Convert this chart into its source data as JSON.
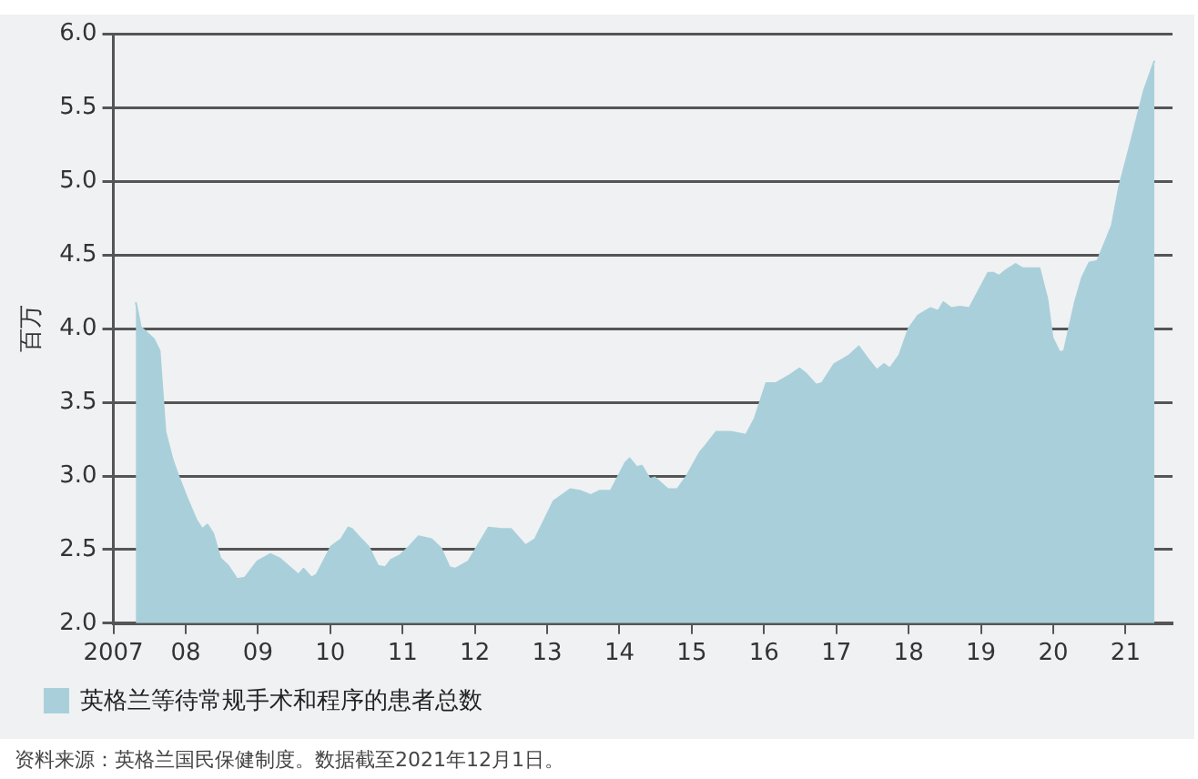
{
  "chart_data": {
    "type": "area",
    "ylabel": "百万",
    "legend": "bottom",
    "grid": "y",
    "xlim": [
      2007,
      2021.65
    ],
    "ylim": [
      2.0,
      6.0
    ],
    "xticks": [
      2007,
      {
        "value": 2008,
        "label": "08"
      },
      {
        "value": 2009,
        "label": "09"
      },
      {
        "value": 2010,
        "label": "10"
      },
      {
        "value": 2011,
        "label": "11"
      },
      {
        "value": 2012,
        "label": "12"
      },
      {
        "value": 2013,
        "label": "13"
      },
      {
        "value": 2014,
        "label": "14"
      },
      {
        "value": 2015,
        "label": "15"
      },
      {
        "value": 2016,
        "label": "16"
      },
      {
        "value": 2017,
        "label": "17"
      },
      {
        "value": 2018,
        "label": "18"
      },
      {
        "value": 2019,
        "label": "19"
      },
      {
        "value": 2020,
        "label": "20"
      },
      {
        "value": 2021,
        "label": "21"
      }
    ],
    "yticks": [
      {
        "value": 2.0,
        "label": "2.0"
      },
      {
        "value": 2.5,
        "label": "2.5"
      },
      {
        "value": 3.0,
        "label": "3.0"
      },
      {
        "value": 3.5,
        "label": "3.5"
      },
      {
        "value": 4.0,
        "label": "4.0"
      },
      {
        "value": 4.5,
        "label": "4.5"
      },
      {
        "value": 5.0,
        "label": "5.0"
      },
      {
        "value": 5.5,
        "label": "5.5"
      },
      {
        "value": 6.0,
        "label": "6.0"
      }
    ],
    "annotations": [
      "资料来源：英格兰国民保健制度。数据截至2021年12月1日。"
    ],
    "series": [
      {
        "name": "英格兰等待常规手术和程序的患者总数",
        "color": "#a9d0da",
        "x": [
          2007.31,
          2007.38,
          2007.56,
          2007.64,
          2007.72,
          2007.82,
          2007.9,
          2008.02,
          2008.15,
          2008.23,
          2008.3,
          2008.38,
          2008.48,
          2008.59,
          2008.71,
          2008.82,
          2008.99,
          2009.17,
          2009.3,
          2009.56,
          2009.63,
          2009.74,
          2009.81,
          2010.01,
          2010.15,
          2010.25,
          2010.3,
          2010.43,
          2010.53,
          2010.66,
          2010.76,
          2010.84,
          2010.96,
          2011.09,
          2011.22,
          2011.4,
          2011.53,
          2011.65,
          2011.73,
          2011.91,
          2012.19,
          2012.37,
          2012.5,
          2012.7,
          2012.83,
          2013.09,
          2013.32,
          2013.45,
          2013.6,
          2013.73,
          2013.88,
          2014.08,
          2014.14,
          2014.24,
          2014.31,
          2014.42,
          2014.49,
          2014.67,
          2014.8,
          2014.93,
          2015.11,
          2015.18,
          2015.34,
          2015.54,
          2015.75,
          2015.87,
          2016.03,
          2016.16,
          2016.34,
          2016.49,
          2016.57,
          2016.72,
          2016.8,
          2016.97,
          2017.18,
          2017.31,
          2017.43,
          2017.56,
          2017.66,
          2017.74,
          2017.87,
          2018.0,
          2018.13,
          2018.3,
          2018.41,
          2018.48,
          2018.59,
          2018.71,
          2018.84,
          2019.1,
          2019.17,
          2019.25,
          2019.35,
          2019.48,
          2019.58,
          2019.81,
          2019.92,
          2019.99,
          2020.09,
          2020.15,
          2020.3,
          2020.4,
          2020.5,
          2020.61,
          2020.81,
          2020.91,
          2021.07,
          2021.25,
          2021.4
        ],
        "values": [
          4.18,
          4.01,
          3.93,
          3.85,
          3.3,
          3.11,
          3.0,
          2.85,
          2.7,
          2.64,
          2.67,
          2.61,
          2.44,
          2.39,
          2.3,
          2.31,
          2.42,
          2.47,
          2.44,
          2.33,
          2.37,
          2.31,
          2.33,
          2.52,
          2.57,
          2.65,
          2.64,
          2.57,
          2.52,
          2.39,
          2.38,
          2.43,
          2.46,
          2.52,
          2.59,
          2.57,
          2.51,
          2.38,
          2.37,
          2.42,
          2.65,
          2.64,
          2.64,
          2.53,
          2.57,
          2.83,
          2.91,
          2.9,
          2.87,
          2.9,
          2.9,
          3.09,
          3.12,
          3.06,
          3.07,
          2.98,
          2.99,
          2.91,
          2.91,
          3.0,
          3.16,
          3.2,
          3.3,
          3.3,
          3.28,
          3.39,
          3.63,
          3.63,
          3.68,
          3.73,
          3.7,
          3.62,
          3.63,
          3.76,
          3.82,
          3.88,
          3.8,
          3.72,
          3.76,
          3.73,
          3.82,
          4.0,
          4.09,
          4.14,
          4.12,
          4.18,
          4.14,
          4.15,
          4.14,
          4.38,
          4.38,
          4.36,
          4.4,
          4.44,
          4.41,
          4.41,
          4.2,
          3.94,
          3.84,
          3.85,
          4.18,
          4.35,
          4.45,
          4.46,
          4.7,
          4.96,
          5.26,
          5.61,
          5.82
        ]
      }
    ]
  }
}
